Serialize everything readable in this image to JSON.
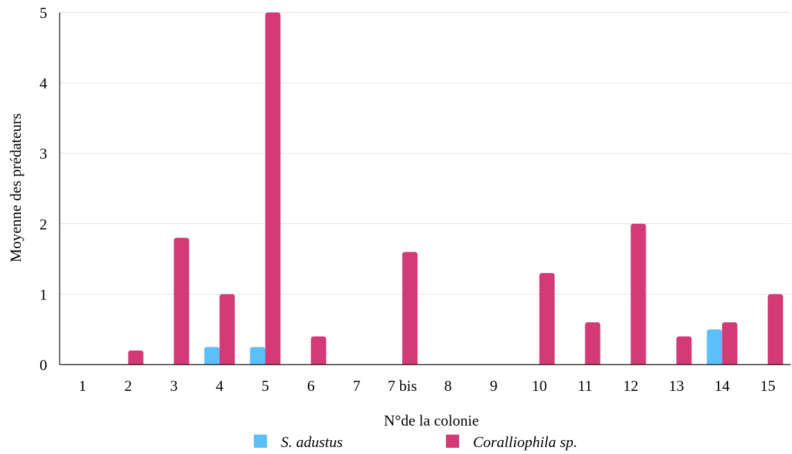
{
  "chart_data": {
    "type": "bar",
    "title": "",
    "xlabel": "N°de la colonie",
    "ylabel": "Moyenne des prédateurs",
    "ylim": [
      0,
      5
    ],
    "yticks": [
      0,
      1,
      2,
      3,
      4,
      5
    ],
    "grid": true,
    "legend_position": "bottom",
    "categories": [
      "1",
      "2",
      "3",
      "4",
      "5",
      "6",
      "7",
      "7 bis",
      "8",
      "9",
      "10",
      "11",
      "12",
      "13",
      "14",
      "15"
    ],
    "series": [
      {
        "name": "S. adustus",
        "color": "#5bc0f8",
        "values": [
          0,
          0,
          0,
          0.25,
          0.25,
          0,
          0,
          0,
          0,
          0,
          0,
          0,
          0,
          0,
          0.5,
          0
        ]
      },
      {
        "name": "Coralliophila sp.",
        "color": "#d33a76",
        "values": [
          0,
          0.2,
          1.8,
          1.0,
          5.0,
          0.4,
          0,
          1.6,
          0,
          0,
          1.3,
          0.6,
          2.0,
          0.4,
          0.6,
          1.0
        ]
      }
    ]
  }
}
